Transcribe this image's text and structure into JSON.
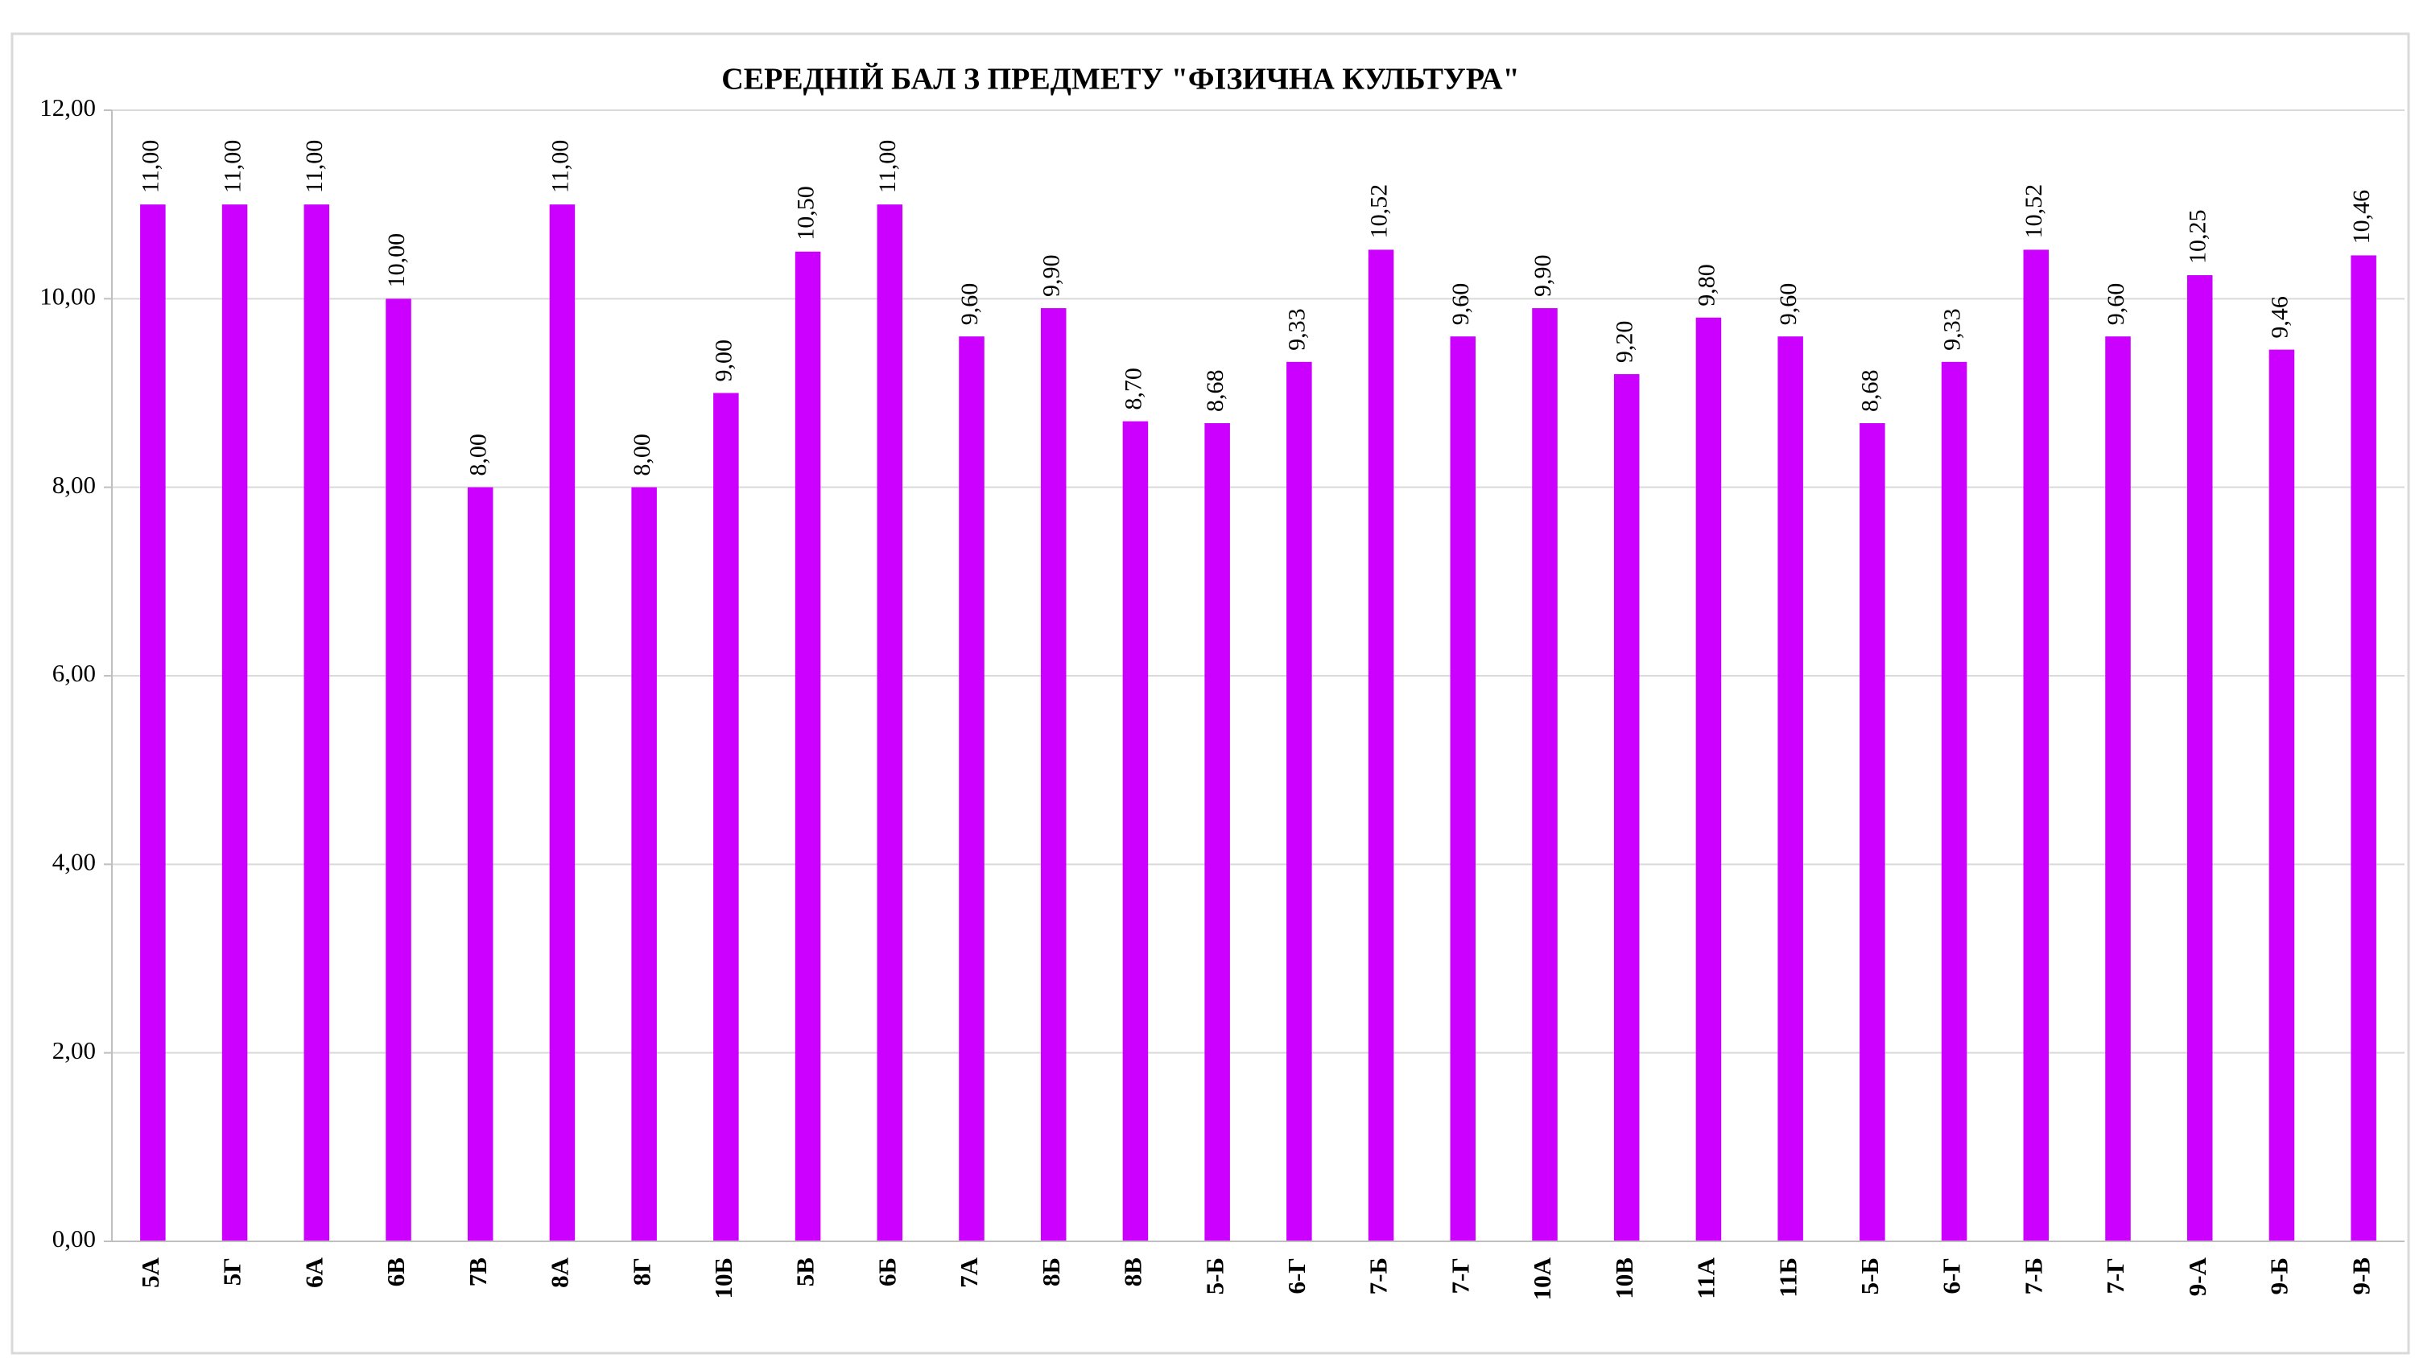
{
  "chart_data": {
    "type": "bar",
    "title": "СЕРЕДНІЙ БАЛ З ПРЕДМЕТУ \"ФІЗИЧНА КУЛЬТУРА\"",
    "categories": [
      "5А",
      "5Г",
      "6А",
      "6В",
      "7В",
      "8А",
      "8Г",
      "10Б",
      "5В",
      "6Б",
      "7А",
      "8Б",
      "8В",
      "5-Б",
      "6-Г",
      "7-Б",
      "7-Г",
      "10А",
      "10В",
      "11А",
      "11Б",
      "5-Б",
      "6-Г",
      "7-Б",
      "7-Г",
      "9-А",
      "9-Б",
      "9-В"
    ],
    "values": [
      11,
      11,
      11,
      10,
      8,
      11,
      8,
      9,
      10.5,
      11,
      9.6,
      9.9,
      8.7,
      8.68,
      9.33,
      10.52,
      9.6,
      9.9,
      9.2,
      9.8,
      9.6,
      8.68,
      9.33,
      10.52,
      9.6,
      10.25,
      9.46,
      10.46
    ],
    "value_labels": [
      "11,00",
      "11,00",
      "11,00",
      "10,00",
      "8,00",
      "11,00",
      "8,00",
      "9,00",
      "10,50",
      "11,00",
      "9,60",
      "9,90",
      "8,70",
      "8,68",
      "9,33",
      "10,52",
      "9,60",
      "9,90",
      "9,20",
      "9,80",
      "9,60",
      "8,68",
      "9,33",
      "10,52",
      "9,60",
      "10,25",
      "9,46",
      "10,46"
    ],
    "color": "#cc00ff",
    "ylim": [
      0,
      12
    ],
    "yticks": [
      {
        "value": 0,
        "label": "0,00"
      },
      {
        "value": 2,
        "label": "2,00"
      },
      {
        "value": 4,
        "label": "4,00"
      },
      {
        "value": 6,
        "label": "6,00"
      },
      {
        "value": 8,
        "label": "8,00"
      },
      {
        "value": 10,
        "label": "10,00"
      },
      {
        "value": 12,
        "label": "12,00"
      }
    ],
    "grid": true
  }
}
